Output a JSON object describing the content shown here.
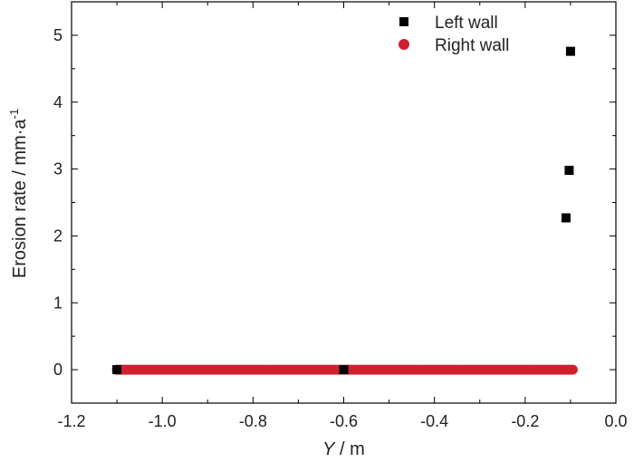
{
  "chart_data": {
    "type": "scatter",
    "title": "",
    "xlabel": {
      "italic": "Y",
      "rest": " / m"
    },
    "ylabel": {
      "base": "Erosion rate / mm·a",
      "sup": "-1"
    },
    "xlim": [
      -1.2,
      0.0
    ],
    "ylim": [
      -0.5,
      5.5
    ],
    "xticks": [
      -1.2,
      -1.0,
      -0.8,
      -0.6,
      -0.4,
      -0.2,
      0.0
    ],
    "xtick_labels": [
      "-1.2",
      "-1.0",
      "-0.8",
      "-0.6",
      "-0.4",
      "-0.2",
      "0.0"
    ],
    "yticks": [
      0,
      1,
      2,
      3,
      4,
      5
    ],
    "ytick_labels": [
      "0",
      "1",
      "2",
      "3",
      "4",
      "5"
    ],
    "grid": false,
    "legend_position": "top-right",
    "series": [
      {
        "name": "Left wall",
        "marker": "square",
        "color": "#000000",
        "points": [
          {
            "x": -1.1,
            "y": 0
          },
          {
            "x": -0.6,
            "y": 0
          },
          {
            "x": -0.11,
            "y": 2.27
          },
          {
            "x": -0.103,
            "y": 2.98
          },
          {
            "x": -0.1,
            "y": 4.76
          }
        ]
      },
      {
        "name": "Right wall",
        "marker": "circle",
        "color": "#d0202e",
        "x_from": -1.1,
        "x_to": -0.095,
        "y": 0
      }
    ]
  }
}
